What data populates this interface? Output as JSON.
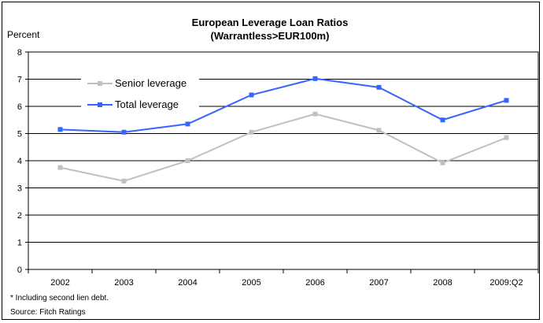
{
  "chart_data": {
    "type": "line",
    "title": "European Leverage Loan Ratios",
    "subtitle": "(Warrantless>EUR100m)",
    "ylabel": "Percent",
    "xlabel": "",
    "ylim": [
      0,
      8
    ],
    "yticks": [
      "0",
      "1",
      "2",
      "3",
      "4",
      "5",
      "6",
      "7",
      "8"
    ],
    "categories": [
      "2002",
      "2003",
      "2004",
      "2005",
      "2006",
      "2007",
      "2008",
      "2009:Q2"
    ],
    "series": [
      {
        "name": "Senior leverage",
        "color": "#c0c0c0",
        "values": [
          3.75,
          3.25,
          4.0,
          5.05,
          5.72,
          5.12,
          3.92,
          4.85
        ]
      },
      {
        "name": "Total leverage",
        "color": "#3366ff",
        "values": [
          5.15,
          5.05,
          5.35,
          6.42,
          7.02,
          6.7,
          5.5,
          6.22
        ]
      }
    ],
    "grid": true,
    "legend": "top-left",
    "footnote": "* Including second lien debt.",
    "source": "Source:  Fitch Ratings"
  }
}
